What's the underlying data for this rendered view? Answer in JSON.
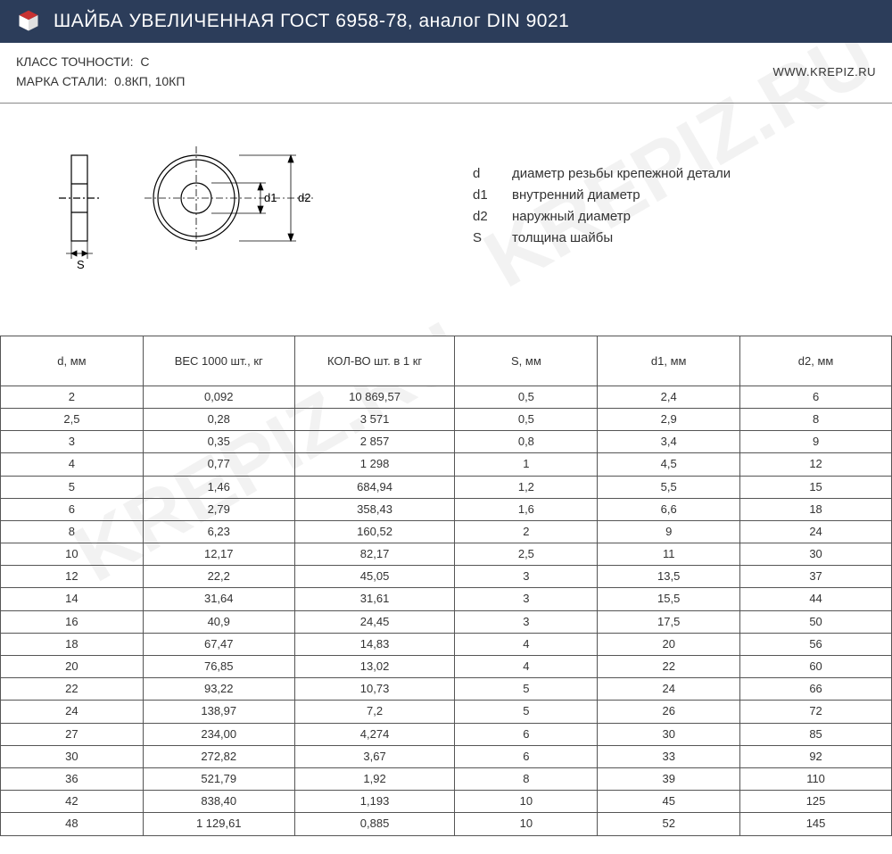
{
  "header": {
    "title": "ШАЙБА УВЕЛИЧЕННАЯ ГОСТ 6958-78, аналог DIN 9021",
    "bg_color": "#2c3d5a",
    "text_color": "#ffffff",
    "logo_fill": "#c83232"
  },
  "info": {
    "accuracy_label": "КЛАСС ТОЧНОСТИ:",
    "accuracy_value": "C",
    "steel_label": "МАРКА СТАЛИ:",
    "steel_value": "0.8КП, 10КП",
    "website": "WWW.KREPIZ.RU"
  },
  "drawing": {
    "labels": {
      "s": "S",
      "d1": "d1",
      "d2": "d2"
    },
    "stroke": "#000000",
    "dash": "#000000"
  },
  "legend": [
    {
      "sym": "d",
      "text": "диаметр резьбы крепежной детали"
    },
    {
      "sym": "d1",
      "text": "внутренний диаметр"
    },
    {
      "sym": "d2",
      "text": "наружный диаметр"
    },
    {
      "sym": "S",
      "text": "толщина шайбы"
    }
  ],
  "spec_table": {
    "columns": [
      "d, мм",
      "ВЕС 1000 шт., кг",
      "КОЛ-ВО шт. в 1 кг",
      "S, мм",
      "d1, мм",
      "d2, мм"
    ],
    "col_widths_pct": [
      16,
      17,
      18,
      16,
      16,
      17
    ],
    "border_color": "#555555",
    "header_fontsize": 13,
    "cell_fontsize": 13,
    "rows": [
      [
        "2",
        "0,092",
        "10 869,57",
        "0,5",
        "2,4",
        "6"
      ],
      [
        "2,5",
        "0,28",
        "3 571",
        "0,5",
        "2,9",
        "8"
      ],
      [
        "3",
        "0,35",
        "2 857",
        "0,8",
        "3,4",
        "9"
      ],
      [
        "4",
        "0,77",
        "1 298",
        "1",
        "4,5",
        "12"
      ],
      [
        "5",
        "1,46",
        "684,94",
        "1,2",
        "5,5",
        "15"
      ],
      [
        "6",
        "2,79",
        "358,43",
        "1,6",
        "6,6",
        "18"
      ],
      [
        "8",
        "6,23",
        "160,52",
        "2",
        "9",
        "24"
      ],
      [
        "10",
        "12,17",
        "82,17",
        "2,5",
        "11",
        "30"
      ],
      [
        "12",
        "22,2",
        "45,05",
        "3",
        "13,5",
        "37"
      ],
      [
        "14",
        "31,64",
        "31,61",
        "3",
        "15,5",
        "44"
      ],
      [
        "16",
        "40,9",
        "24,45",
        "3",
        "17,5",
        "50"
      ],
      [
        "18",
        "67,47",
        "14,83",
        "4",
        "20",
        "56"
      ],
      [
        "20",
        "76,85",
        "13,02",
        "4",
        "22",
        "60"
      ],
      [
        "22",
        "93,22",
        "10,73",
        "5",
        "24",
        "66"
      ],
      [
        "24",
        "138,97",
        "7,2",
        "5",
        "26",
        "72"
      ],
      [
        "27",
        "234,00",
        "4,274",
        "6",
        "30",
        "85"
      ],
      [
        "30",
        "272,82",
        "3,67",
        "6",
        "33",
        "92"
      ],
      [
        "36",
        "521,79",
        "1,92",
        "8",
        "39",
        "110"
      ],
      [
        "42",
        "838,40",
        "1,193",
        "10",
        "45",
        "125"
      ],
      [
        "48",
        "1 129,61",
        "0,885",
        "10",
        "52",
        "145"
      ]
    ]
  },
  "watermark_text": "KREPIZ.RU"
}
